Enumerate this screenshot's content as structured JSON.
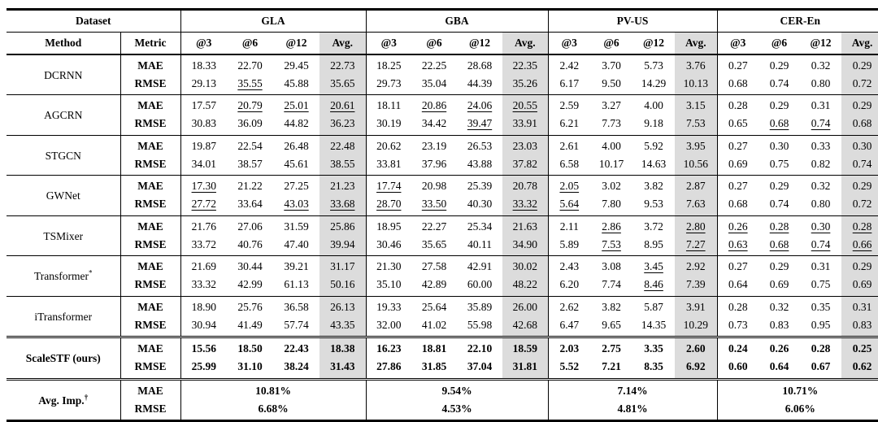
{
  "table": {
    "title_semantics": "benchmark-results-table",
    "accent_gray": "#dcdcdc",
    "header": {
      "dataset_label": "Dataset",
      "method_label": "Method",
      "metric_label": "Metric"
    },
    "datasets": [
      "GLA",
      "GBA",
      "PV-US",
      "CER-En"
    ],
    "subcols": [
      "@3",
      "@6",
      "@12",
      "Avg."
    ],
    "metrics": [
      "MAE",
      "RMSE"
    ],
    "rows": [
      {
        "method": "DCRNN",
        "sup": "",
        "bold": false,
        "mae": [
          "18.33",
          "22.70",
          "29.45",
          "22.73",
          "18.25",
          "22.25",
          "28.68",
          "22.35",
          "2.42",
          "3.70",
          "5.73",
          "3.76",
          "0.27",
          "0.29",
          "0.32",
          "0.29"
        ],
        "rmse": [
          "29.13",
          "35.55",
          "45.88",
          "35.65",
          "29.73",
          "35.04",
          "44.39",
          "35.26",
          "6.17",
          "9.50",
          "14.29",
          "10.13",
          "0.68",
          "0.74",
          "0.80",
          "0.72"
        ],
        "mae_underline": [],
        "rmse_underline": [
          1
        ]
      },
      {
        "method": "AGCRN",
        "sup": "",
        "bold": false,
        "mae": [
          "17.57",
          "20.79",
          "25.01",
          "20.61",
          "18.11",
          "20.86",
          "24.06",
          "20.55",
          "2.59",
          "3.27",
          "4.00",
          "3.15",
          "0.28",
          "0.29",
          "0.31",
          "0.29"
        ],
        "rmse": [
          "30.83",
          "36.09",
          "44.82",
          "36.23",
          "30.19",
          "34.42",
          "39.47",
          "33.91",
          "6.21",
          "7.73",
          "9.18",
          "7.53",
          "0.65",
          "0.68",
          "0.74",
          "0.68"
        ],
        "mae_underline": [
          1,
          2,
          3,
          5,
          6,
          7
        ],
        "rmse_underline": [
          6,
          13,
          14
        ]
      },
      {
        "method": "STGCN",
        "sup": "",
        "bold": false,
        "mae": [
          "19.87",
          "22.54",
          "26.48",
          "22.48",
          "20.62",
          "23.19",
          "26.53",
          "23.03",
          "2.61",
          "4.00",
          "5.92",
          "3.95",
          "0.27",
          "0.30",
          "0.33",
          "0.30"
        ],
        "rmse": [
          "34.01",
          "38.57",
          "45.61",
          "38.55",
          "33.81",
          "37.96",
          "43.88",
          "37.82",
          "6.58",
          "10.17",
          "14.63",
          "10.56",
          "0.69",
          "0.75",
          "0.82",
          "0.74"
        ],
        "mae_underline": [],
        "rmse_underline": []
      },
      {
        "method": "GWNet",
        "sup": "",
        "bold": false,
        "mae": [
          "17.30",
          "21.22",
          "27.25",
          "21.23",
          "17.74",
          "20.98",
          "25.39",
          "20.78",
          "2.05",
          "3.02",
          "3.82",
          "2.87",
          "0.27",
          "0.29",
          "0.32",
          "0.29"
        ],
        "rmse": [
          "27.72",
          "33.64",
          "43.03",
          "33.68",
          "28.70",
          "33.50",
          "40.30",
          "33.32",
          "5.64",
          "7.80",
          "9.53",
          "7.63",
          "0.68",
          "0.74",
          "0.80",
          "0.72"
        ],
        "mae_underline": [
          0,
          4,
          8
        ],
        "rmse_underline": [
          0,
          2,
          3,
          4,
          5,
          7,
          8
        ]
      },
      {
        "method": "TSMixer",
        "sup": "",
        "bold": false,
        "mae": [
          "21.76",
          "27.06",
          "31.59",
          "25.86",
          "18.95",
          "22.27",
          "25.34",
          "21.63",
          "2.11",
          "2.86",
          "3.72",
          "2.80",
          "0.26",
          "0.28",
          "0.30",
          "0.28"
        ],
        "rmse": [
          "33.72",
          "40.76",
          "47.40",
          "39.94",
          "30.46",
          "35.65",
          "40.11",
          "34.90",
          "5.89",
          "7.53",
          "8.95",
          "7.27",
          "0.63",
          "0.68",
          "0.74",
          "0.66"
        ],
        "mae_underline": [
          9,
          11,
          12,
          13,
          14,
          15
        ],
        "rmse_underline": [
          9,
          11,
          12,
          13,
          14,
          15
        ]
      },
      {
        "method": "Transformer",
        "sup": "*",
        "bold": false,
        "mae": [
          "21.69",
          "30.44",
          "39.21",
          "31.17",
          "21.30",
          "27.58",
          "42.91",
          "30.02",
          "2.43",
          "3.08",
          "3.45",
          "2.92",
          "0.27",
          "0.29",
          "0.31",
          "0.29"
        ],
        "rmse": [
          "33.32",
          "42.99",
          "61.13",
          "50.16",
          "35.10",
          "42.89",
          "60.00",
          "48.22",
          "6.20",
          "7.74",
          "8.46",
          "7.39",
          "0.64",
          "0.69",
          "0.75",
          "0.69"
        ],
        "mae_underline": [
          10
        ],
        "rmse_underline": [
          10
        ]
      },
      {
        "method": "iTransformer",
        "sup": "",
        "bold": false,
        "mae": [
          "18.90",
          "25.76",
          "36.58",
          "26.13",
          "19.33",
          "25.64",
          "35.89",
          "26.00",
          "2.62",
          "3.82",
          "5.87",
          "3.91",
          "0.28",
          "0.32",
          "0.35",
          "0.31"
        ],
        "rmse": [
          "30.94",
          "41.49",
          "57.74",
          "43.35",
          "32.00",
          "41.02",
          "55.98",
          "42.68",
          "6.47",
          "9.65",
          "14.35",
          "10.29",
          "0.73",
          "0.83",
          "0.95",
          "0.83"
        ],
        "mae_underline": [],
        "rmse_underline": []
      },
      {
        "method": "ScaleSTF (ours)",
        "sup": "",
        "bold": true,
        "double_top": true,
        "mae": [
          "15.56",
          "18.50",
          "22.43",
          "18.38",
          "16.23",
          "18.81",
          "22.10",
          "18.59",
          "2.03",
          "2.75",
          "3.35",
          "2.60",
          "0.24",
          "0.26",
          "0.28",
          "0.25"
        ],
        "rmse": [
          "25.99",
          "31.10",
          "38.24",
          "31.43",
          "27.86",
          "31.85",
          "37.04",
          "31.81",
          "5.52",
          "7.21",
          "8.35",
          "6.92",
          "0.60",
          "0.64",
          "0.67",
          "0.62"
        ],
        "mae_underline": [],
        "rmse_underline": []
      }
    ],
    "avg_imp": {
      "method": "Avg. Imp.",
      "sup": "†",
      "mae": [
        "10.81%",
        "9.54%",
        "7.14%",
        "10.71%"
      ],
      "rmse": [
        "6.68%",
        "4.53%",
        "4.81%",
        "6.06%"
      ]
    }
  }
}
